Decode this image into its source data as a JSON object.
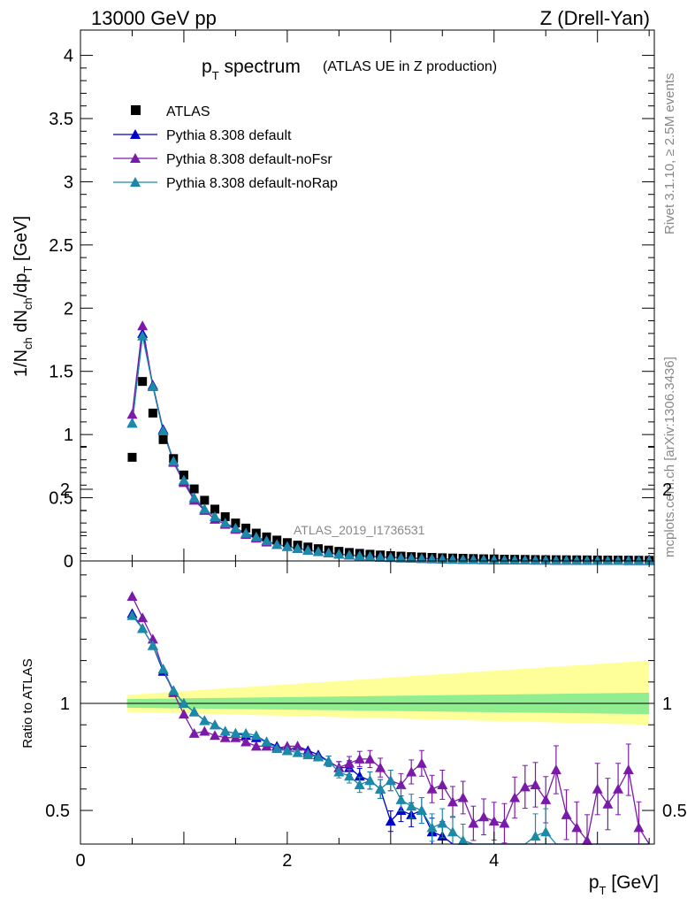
{
  "header": {
    "left": "13000 GeV pp",
    "right": "Z (Drell-Yan)"
  },
  "title": {
    "main": "p",
    "main_sub": "T",
    "main_rest": " spectrum",
    "small": "(ATLAS UE in Z production)"
  },
  "side_labels": {
    "rivet": "Rivet 3.1.10, ≥ 2.5M events",
    "mcplots": "mcplots.cern.ch [arXiv:1306.3436]"
  },
  "watermark": "ATLAS_2019_I1736531",
  "colors": {
    "atlas": "#000000",
    "default": "#0000cc",
    "noFsr": "#7b1aa8",
    "noRap": "#1a8aa8",
    "band_inner": "#90ee90",
    "band_outer": "#ffff99"
  },
  "chart_data": [
    {
      "type": "scatter",
      "panel": "main",
      "ylabel": "1/N_ch dN_ch/dp_T [GeV]",
      "xlim": [
        0,
        5.55
      ],
      "ylim": [
        0,
        4.2
      ],
      "yticks": [
        0,
        0.5,
        1,
        1.5,
        2,
        2.5,
        3,
        3.5,
        4
      ],
      "ytick_labels": [
        "0",
        "0.5",
        "1",
        "1.5",
        "2",
        "2.5",
        "3",
        "3.5",
        "4"
      ],
      "legend": [
        "ATLAS",
        "Pythia 8.308 default",
        "Pythia 8.308 default-noFsr",
        "Pythia 8.308 default-noRap"
      ],
      "x": [
        0.5,
        0.6,
        0.7,
        0.8,
        0.9,
        1.0,
        1.1,
        1.2,
        1.3,
        1.4,
        1.5,
        1.6,
        1.7,
        1.8,
        1.9,
        2.0,
        2.1,
        2.2,
        2.3,
        2.4,
        2.5,
        2.6,
        2.7,
        2.8,
        2.9,
        3.0,
        3.1,
        3.2,
        3.3,
        3.4,
        3.5,
        3.6,
        3.7,
        3.8,
        3.9,
        4.0,
        4.1,
        4.2,
        4.3,
        4.4,
        4.5,
        4.6,
        4.7,
        4.8,
        4.9,
        5.0,
        5.1,
        5.2,
        5.3,
        5.4,
        5.5
      ],
      "series": [
        {
          "name": "ATLAS",
          "marker": "square",
          "values": [
            0.82,
            1.42,
            1.17,
            0.96,
            0.81,
            0.68,
            0.57,
            0.48,
            0.41,
            0.35,
            0.3,
            0.26,
            0.22,
            0.19,
            0.165,
            0.145,
            0.125,
            0.11,
            0.097,
            0.086,
            0.076,
            0.067,
            0.06,
            0.053,
            0.047,
            0.042,
            0.038,
            0.034,
            0.031,
            0.028,
            0.025,
            0.023,
            0.021,
            0.019,
            0.017,
            0.016,
            0.014,
            0.013,
            0.012,
            0.011,
            0.01,
            0.0095,
            0.009,
            0.0085,
            0.008,
            0.0075,
            0.007,
            0.0065,
            0.006,
            0.0055,
            0.005
          ]
        },
        {
          "name": "Pythia 8.308 default",
          "marker": "triangle",
          "values": [
            1.09,
            1.8,
            1.39,
            1.04,
            0.79,
            0.63,
            0.5,
            0.41,
            0.35,
            0.3,
            0.26,
            0.22,
            0.19,
            0.16,
            0.13,
            0.115,
            0.1,
            0.085,
            0.074,
            0.064,
            0.054,
            0.046,
            0.04,
            0.035,
            0.03,
            0.027,
            0.024,
            0.021,
            0.019,
            0.017,
            0.015,
            0.013,
            0.012,
            0.011,
            0.01,
            0.009,
            0.008,
            0.0075,
            0.007,
            0.0065,
            0.006,
            0.0055,
            0.005,
            0.0045,
            0.004,
            0.0038,
            0.0035,
            0.0033,
            0.003,
            0.0028,
            0.0025
          ]
        },
        {
          "name": "Pythia 8.308 default-noFsr",
          "marker": "triangle",
          "values": [
            1.16,
            1.86,
            1.38,
            1.03,
            0.78,
            0.62,
            0.48,
            0.4,
            0.33,
            0.29,
            0.25,
            0.21,
            0.18,
            0.15,
            0.13,
            0.115,
            0.1,
            0.087,
            0.075,
            0.065,
            0.055,
            0.048,
            0.043,
            0.038,
            0.034,
            0.029,
            0.026,
            0.024,
            0.021,
            0.019,
            0.017,
            0.015,
            0.013,
            0.012,
            0.011,
            0.01,
            0.009,
            0.0085,
            0.008,
            0.0075,
            0.007,
            0.0065,
            0.006,
            0.0055,
            0.005,
            0.0048,
            0.0045,
            0.0043,
            0.004,
            0.0038,
            0.0035
          ]
        },
        {
          "name": "Pythia 8.308 default-noRap",
          "marker": "triangle",
          "values": [
            1.09,
            1.78,
            1.38,
            1.03,
            0.79,
            0.64,
            0.5,
            0.41,
            0.35,
            0.3,
            0.26,
            0.22,
            0.19,
            0.16,
            0.13,
            0.115,
            0.1,
            0.085,
            0.074,
            0.064,
            0.054,
            0.046,
            0.04,
            0.035,
            0.031,
            0.027,
            0.024,
            0.021,
            0.019,
            0.017,
            0.015,
            0.013,
            0.012,
            0.011,
            0.01,
            0.009,
            0.008,
            0.0075,
            0.007,
            0.0065,
            0.006,
            0.0055,
            0.005,
            0.0045,
            0.004,
            0.0038,
            0.0035,
            0.0033,
            0.003,
            0.0028,
            0.0025
          ]
        }
      ]
    },
    {
      "type": "line",
      "panel": "ratio",
      "ylabel": "Ratio to ATLAS",
      "xlabel": "p_T [GeV]",
      "xlim": [
        0,
        5.55
      ],
      "ylim": [
        0.34,
        2.25
      ],
      "xticks": [
        0,
        2,
        4
      ],
      "xtick_labels": [
        "0",
        "2",
        "4"
      ],
      "yticks": [
        0.5,
        1,
        2
      ],
      "ytick_labels": [
        "0.5",
        "1",
        "2"
      ],
      "band_x": [
        0.45,
        5.5
      ],
      "band_inner": [
        [
          0.98,
          1.02
        ],
        [
          0.95,
          1.05
        ]
      ],
      "band_outer": [
        [
          0.96,
          1.04
        ],
        [
          0.9,
          1.2
        ]
      ],
      "x": [
        0.5,
        0.6,
        0.7,
        0.8,
        0.9,
        1.0,
        1.1,
        1.2,
        1.3,
        1.4,
        1.5,
        1.6,
        1.7,
        1.8,
        1.9,
        2.0,
        2.1,
        2.2,
        2.3,
        2.4,
        2.5,
        2.6,
        2.7,
        2.8,
        2.9,
        3.0,
        3.1,
        3.2,
        3.3,
        3.4,
        3.5,
        3.6,
        3.7,
        3.8,
        3.9,
        4.0,
        4.1,
        4.2,
        4.3,
        4.4,
        4.5,
        4.6,
        4.7,
        4.8,
        4.9,
        5.0,
        5.1,
        5.2,
        5.3,
        5.4,
        5.5
      ],
      "series": [
        {
          "name": "Pythia 8.308 default",
          "values": [
            1.42,
            1.35,
            1.27,
            1.15,
            1.06,
            1.0,
            0.96,
            0.92,
            0.9,
            0.87,
            0.86,
            0.85,
            0.84,
            0.82,
            0.8,
            0.78,
            0.8,
            0.78,
            0.76,
            0.73,
            0.7,
            0.7,
            0.66,
            0.64,
            0.6,
            0.45,
            0.5,
            0.48,
            0.5,
            0.4,
            0.38,
            0.34,
            0.3,
            0.3,
            0.28,
            0.3,
            0.32,
            0.28,
            0.3,
            0.3,
            0.28,
            0.28,
            0.3,
            0.28,
            0.3,
            0.3,
            0.3,
            0.3,
            0.3,
            0.3,
            0.3
          ]
        },
        {
          "name": "Pythia 8.308 default-noFsr",
          "values": [
            1.5,
            1.4,
            1.3,
            1.16,
            1.05,
            0.95,
            0.86,
            0.87,
            0.85,
            0.84,
            0.84,
            0.82,
            0.8,
            0.8,
            0.79,
            0.8,
            0.8,
            0.77,
            0.75,
            0.73,
            0.7,
            0.72,
            0.74,
            0.74,
            0.7,
            0.64,
            0.62,
            0.68,
            0.72,
            0.6,
            0.62,
            0.54,
            0.56,
            0.44,
            0.47,
            0.45,
            0.44,
            0.56,
            0.61,
            0.62,
            0.55,
            0.69,
            0.48,
            0.42,
            0.36,
            0.6,
            0.53,
            0.6,
            0.69,
            0.42,
            0.3
          ]
        },
        {
          "name": "Pythia 8.308 default-noRap",
          "values": [
            1.41,
            1.35,
            1.27,
            1.16,
            1.06,
            1.0,
            0.96,
            0.92,
            0.9,
            0.87,
            0.86,
            0.86,
            0.85,
            0.82,
            0.79,
            0.78,
            0.77,
            0.76,
            0.75,
            0.73,
            0.68,
            0.66,
            0.62,
            0.64,
            0.6,
            0.64,
            0.55,
            0.52,
            0.5,
            0.42,
            0.44,
            0.4,
            0.36,
            0.32,
            0.3,
            0.3,
            0.32,
            0.32,
            0.33,
            0.38,
            0.4,
            0.3,
            0.3,
            0.3,
            0.3,
            0.3,
            0.3,
            0.3,
            0.3,
            0.3,
            0.3
          ]
        }
      ]
    }
  ]
}
